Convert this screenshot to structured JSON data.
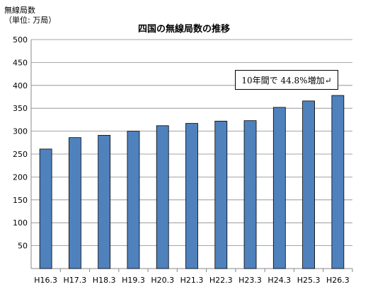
{
  "chart_data": {
    "type": "bar",
    "title": "四国の無線局数の推移",
    "ylabel_lines": [
      "無線局数",
      "（単位: 万局）"
    ],
    "xlabel": "",
    "categories": [
      "H16.3",
      "H17.3",
      "H18.3",
      "H19.3",
      "H20.3",
      "H21.3",
      "H22.3",
      "H23.3",
      "H24.3",
      "H25.3",
      "H26.3"
    ],
    "values": [
      261,
      286,
      291,
      300,
      312,
      317,
      322,
      323,
      352,
      366,
      378
    ],
    "ylim": [
      0,
      500
    ],
    "yticks": [
      50,
      100,
      150,
      200,
      250,
      300,
      350,
      400,
      450,
      500
    ],
    "grid": true,
    "bar_color": "#4f81bd",
    "annotation": "10年間で 44.8%増加↵"
  }
}
